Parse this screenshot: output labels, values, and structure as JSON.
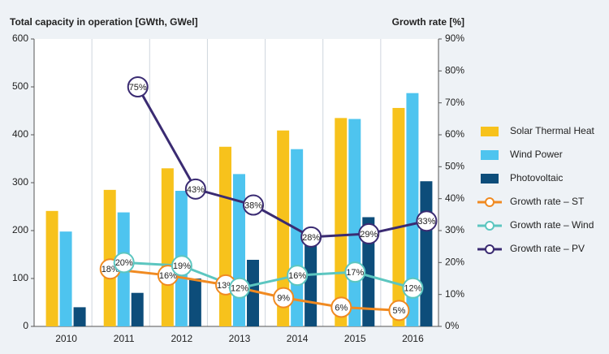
{
  "chart_data": {
    "type": "bar_line",
    "title": "Total capacity in operation [GWth, GWel]",
    "y2_title": "Growth rate [%]",
    "categories": [
      "2010",
      "2011",
      "2012",
      "2013",
      "2014",
      "2015",
      "2016"
    ],
    "ylim": [
      0,
      600
    ],
    "yticks": [
      0,
      100,
      200,
      300,
      400,
      500,
      600
    ],
    "y2lim": [
      0,
      90
    ],
    "y2ticks": [
      {
        "value": 0,
        "label": "0%"
      },
      {
        "value": 10,
        "label": "10%"
      },
      {
        "value": 20,
        "label": "20%"
      },
      {
        "value": 30,
        "label": "30%"
      },
      {
        "value": 40,
        "label": "40%"
      },
      {
        "value": 50,
        "label": "50%"
      },
      {
        "value": 60,
        "label": "60%"
      },
      {
        "value": 70,
        "label": "70%"
      },
      {
        "value": 80,
        "label": "80%"
      },
      {
        "value": 90,
        "label": "90%"
      }
    ],
    "series": [
      {
        "name": "Solar Thermal Heat",
        "type": "bar",
        "color": "#f7c21c",
        "values": [
          241,
          285,
          330,
          375,
          409,
          435,
          456
        ]
      },
      {
        "name": "Wind Power",
        "type": "bar",
        "color": "#4ec4ef",
        "values": [
          198,
          238,
          283,
          318,
          370,
          433,
          487
        ]
      },
      {
        "name": "Photovoltaic",
        "type": "bar",
        "color": "#0d4d7a",
        "values": [
          40,
          70,
          100,
          139,
          178,
          228,
          303
        ]
      },
      {
        "name": "Growth rate – ST",
        "type": "line",
        "axis": "y2",
        "color": "#f08a21",
        "values": [
          null,
          18,
          16,
          13,
          9,
          6,
          5
        ],
        "value_labels": [
          null,
          "18%",
          "16%",
          "13%",
          "9%",
          "6%",
          "5%"
        ]
      },
      {
        "name": "Growth rate – Wind",
        "type": "line",
        "axis": "y2",
        "color": "#5cc6c0",
        "values": [
          null,
          20,
          19,
          12,
          16,
          17,
          12
        ],
        "value_labels": [
          null,
          "20%",
          "19%",
          "12%",
          "16%",
          "17%",
          "12%"
        ]
      },
      {
        "name": "Growth rate – PV",
        "type": "line",
        "axis": "y2",
        "color": "#3a2b72",
        "values": [
          null,
          75,
          43,
          38,
          28,
          29,
          33
        ],
        "value_labels": [
          null,
          "75%",
          "43%",
          "38%",
          "28%",
          "29%",
          "33%"
        ]
      }
    ]
  }
}
